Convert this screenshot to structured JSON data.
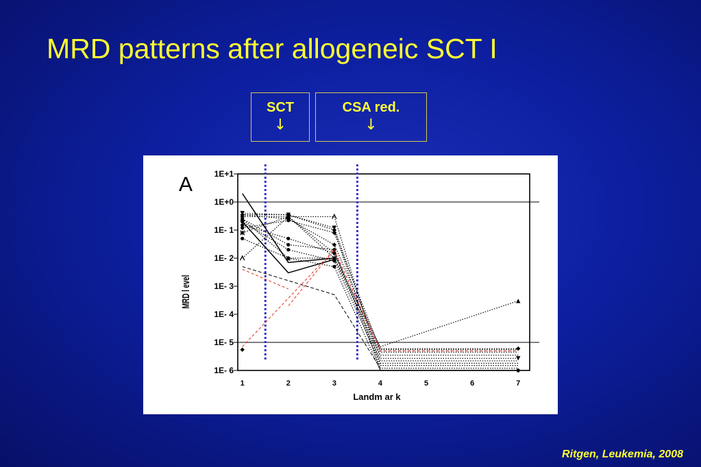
{
  "slide": {
    "title": "MRD patterns after allogeneic SCT I",
    "citation": "Ritgen, Leukemia, 2008"
  },
  "markers": [
    {
      "label": "SCT",
      "arrow": "↓"
    },
    {
      "label": "CSA red.",
      "arrow": "↓"
    }
  ],
  "colors": {
    "title": "#ffff33",
    "background": "#0d1fa0",
    "marker_line": "#3333cc",
    "threshold_line": "#000000",
    "red_series": "#e0301e",
    "series": "#000000"
  },
  "chart_data": {
    "type": "line",
    "panel_label": "A",
    "xlabel": "Landm ar k",
    "ylabel": "MRD l evel",
    "x_ticks": [
      "1",
      "2",
      "3",
      "4",
      "5",
      "6",
      "7"
    ],
    "y_scale": "log",
    "y_ticks": [
      "1E+1",
      "1E+0",
      "1E- 1",
      "1E- 2",
      "1E- 3",
      "1E- 4",
      "1E- 5",
      "1E- 6"
    ],
    "ylim": [
      1e-06,
      10
    ],
    "xlim": [
      0.9,
      7.25
    ],
    "reference_lines": [
      1,
      1e-05
    ],
    "vertical_markers": [
      1.5,
      3.5
    ],
    "series": [
      {
        "style": "solid",
        "x": [
          1,
          2,
          3
        ],
        "y": [
          2.0,
          0.007,
          0.01
        ]
      },
      {
        "style": "solid",
        "x": [
          1,
          2,
          3
        ],
        "y": [
          0.2,
          0.003,
          0.009
        ]
      },
      {
        "style": "dotted",
        "marker": "diamond",
        "x": [
          1,
          2,
          3,
          4,
          7
        ],
        "y": [
          0.35,
          0.25,
          0.03,
          6e-06,
          6e-06
        ],
        "end_marker": true
      },
      {
        "style": "dotted",
        "marker": "circle",
        "x": [
          1,
          2,
          3,
          4,
          7
        ],
        "y": [
          0.12,
          0.22,
          0.08,
          5.5e-06,
          5.5e-06
        ]
      },
      {
        "style": "dotted",
        "marker": "triangle",
        "x": [
          1,
          2,
          3,
          4,
          7
        ],
        "y": [
          0.25,
          0.01,
          0.01,
          7e-06,
          0.0003
        ],
        "end_marker": true
      },
      {
        "style": "dotted",
        "marker": "circle",
        "x": [
          1,
          2,
          3,
          4,
          7
        ],
        "y": [
          0.15,
          0.05,
          0.015,
          4.5e-06,
          4.5e-06
        ]
      },
      {
        "style": "dotted",
        "marker": "star",
        "x": [
          1,
          2,
          3,
          4,
          7
        ],
        "y": [
          0.08,
          0.3,
          0.01,
          3.5e-06,
          3.5e-06
        ]
      },
      {
        "style": "dotted",
        "marker": "triangle-down",
        "x": [
          1,
          2,
          3,
          4,
          7
        ],
        "y": [
          0.4,
          0.35,
          0.12,
          2.7e-06,
          2.7e-06
        ],
        "end_marker": true
      },
      {
        "style": "dotted",
        "marker": "diamond",
        "x": [
          1,
          2,
          3,
          4,
          7
        ],
        "y": [
          0.3,
          0.3,
          0.015,
          2.2e-06,
          2.2e-06
        ]
      },
      {
        "style": "dotted",
        "marker": "circle",
        "x": [
          1,
          2,
          3,
          4,
          7
        ],
        "y": [
          0.2,
          0.02,
          0.008,
          1.8e-06,
          1.8e-06
        ]
      },
      {
        "style": "dotted",
        "marker": "arrow-up",
        "x": [
          1,
          2,
          3,
          4,
          7
        ],
        "y": [
          0.01,
          0.3,
          0.3,
          1.5e-06,
          1.5e-06
        ]
      },
      {
        "style": "dotted",
        "marker": "circle",
        "x": [
          1,
          2,
          3,
          4,
          7
        ],
        "y": [
          0.25,
          0.03,
          0.02,
          1.2e-06,
          1.2e-06
        ]
      },
      {
        "style": "dotted",
        "marker": "diamond",
        "x": [
          1,
          2,
          3,
          4,
          7
        ],
        "y": [
          0.35,
          0.35,
          0.1,
          1e-06,
          1e-06
        ],
        "end_marker": true
      },
      {
        "style": "dotted",
        "marker": "circle",
        "x": [
          1,
          2,
          3,
          4,
          7
        ],
        "y": [
          0.05,
          0.01,
          0.005,
          1e-06,
          1e-06
        ],
        "end_marker": true
      },
      {
        "style": "dashed-black",
        "x": [
          1,
          3,
          4
        ],
        "y": [
          0.005,
          0.0005,
          1.2e-06
        ]
      },
      {
        "style": "dashed-red",
        "x": [
          1,
          2
        ],
        "y": [
          0.004,
          0.0008
        ]
      },
      {
        "style": "dashed-red",
        "x": [
          2,
          3,
          4,
          7
        ],
        "y": [
          0.0002,
          0.02,
          5e-06,
          5e-06
        ]
      },
      {
        "style": "dashed-red",
        "x": [
          1,
          3
        ],
        "y": [
          7e-06,
          0.02
        ]
      },
      {
        "style": "none",
        "marker": "diamond",
        "x": [
          1
        ],
        "y": [
          5.5e-06
        ]
      }
    ]
  }
}
